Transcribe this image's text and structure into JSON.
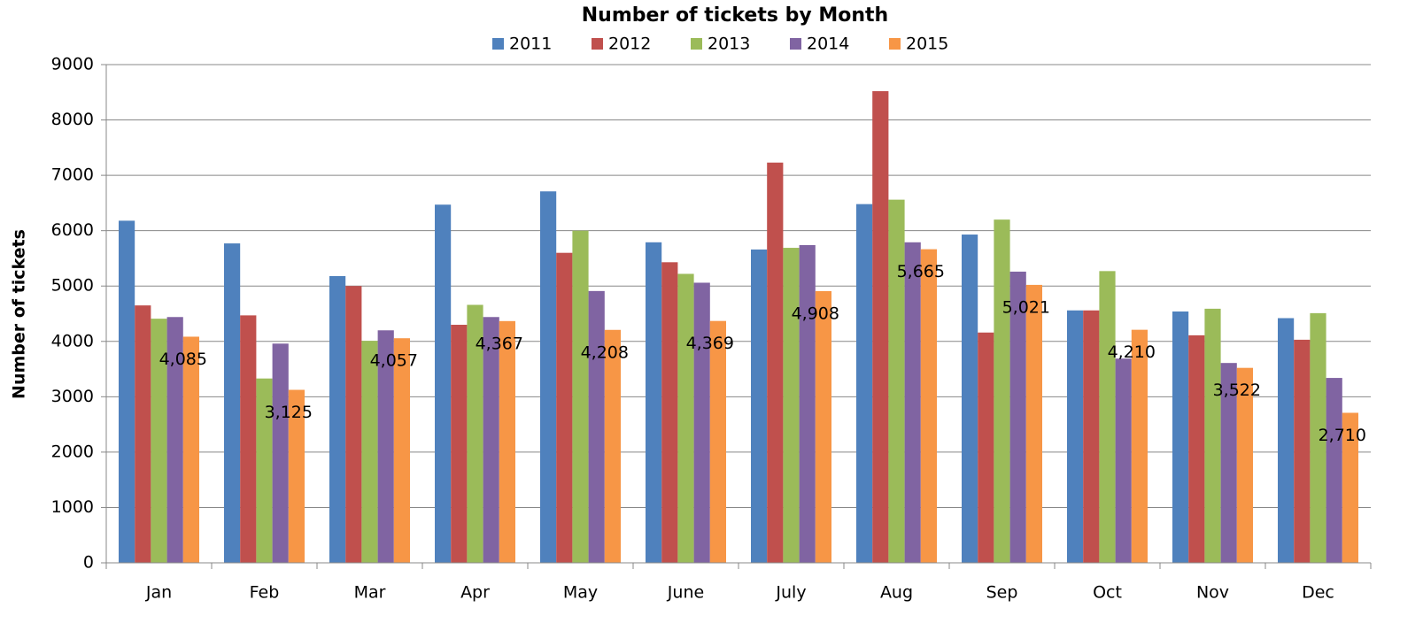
{
  "chart_data": {
    "type": "bar",
    "title": "Number of tickets by Month",
    "y_label": "Number of tickets",
    "categories": [
      "Jan",
      "Feb",
      "Mar",
      "Apr",
      "May",
      "June",
      "July",
      "Aug",
      "Sep",
      "Oct",
      "Nov",
      "Dec"
    ],
    "series": [
      {
        "name": "2011",
        "color": "#4f81bd",
        "values": [
          6180,
          5770,
          5180,
          6470,
          6710,
          5790,
          5660,
          6480,
          5930,
          4560,
          4540,
          4420
        ]
      },
      {
        "name": "2012",
        "color": "#c0504d",
        "values": [
          4650,
          4470,
          5000,
          4300,
          5600,
          5430,
          7230,
          8520,
          4160,
          4560,
          4110,
          4030
        ]
      },
      {
        "name": "2013",
        "color": "#9bbb59",
        "values": [
          4410,
          3330,
          4010,
          4660,
          6000,
          5220,
          5690,
          6560,
          6200,
          5270,
          4590,
          4510
        ]
      },
      {
        "name": "2014",
        "color": "#8064a2",
        "values": [
          4440,
          3960,
          4200,
          4440,
          4910,
          5060,
          5740,
          5790,
          5260,
          3690,
          3610,
          3340
        ]
      },
      {
        "name": "2015",
        "color": "#f79646",
        "values": [
          4085,
          3125,
          4057,
          4367,
          4208,
          4369,
          4908,
          5665,
          5021,
          4210,
          3522,
          2710
        ],
        "value_labels": [
          "4,085",
          "3,125",
          "4,057",
          "4,367",
          "4,208",
          "4,369",
          "4,908",
          "5,665",
          "5,021",
          "4,210",
          "3,522",
          "2,710"
        ]
      }
    ],
    "ylim": [
      0,
      9000
    ],
    "yticks": [
      0,
      1000,
      2000,
      3000,
      4000,
      5000,
      6000,
      7000,
      8000,
      9000
    ],
    "grid": true,
    "legend": "top"
  }
}
